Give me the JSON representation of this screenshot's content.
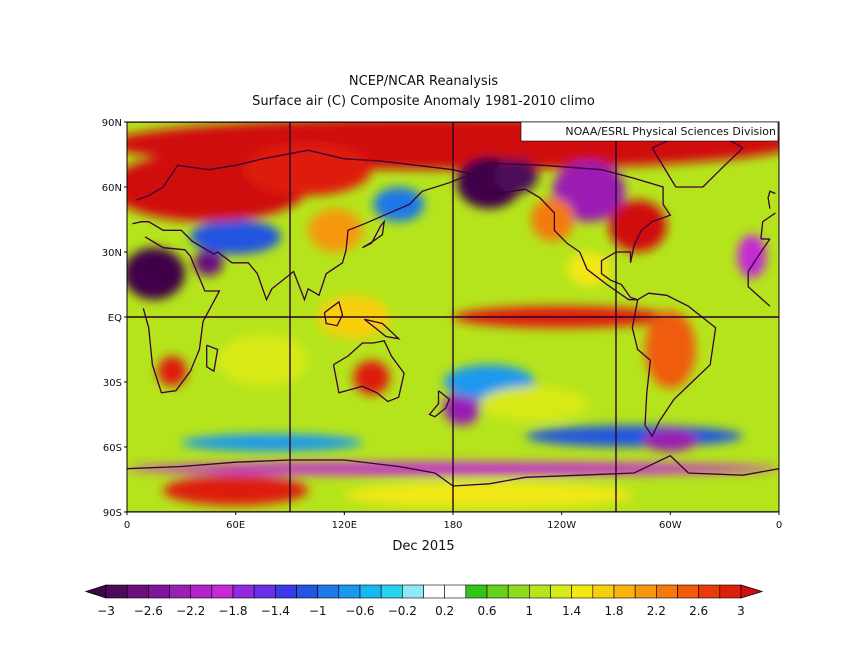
{
  "header": {
    "title_line1": "NCEP/NCAR Reanalysis",
    "title_line2": "Surface air (C) Composite Anomaly 1981-2010 climo",
    "attribution": "NOAA/ESRL Physical Sciences Division"
  },
  "map": {
    "period_label": "Dec 2015",
    "lat_ticks": [
      "90N",
      "60N",
      "30N",
      "EQ",
      "30S",
      "60S",
      "90S"
    ],
    "lon_ticks": [
      "0",
      "60E",
      "120E",
      "180",
      "120W",
      "60W",
      "0"
    ],
    "field": "surface air temperature anomaly",
    "units": "C",
    "projection": "equirectangular, 0-360 longitude",
    "grid_meridians_deg": [
      90,
      180,
      270
    ],
    "grid_parallels_deg": [
      0,
      90,
      -90
    ]
  },
  "colorbar": {
    "labels": [
      "-3",
      "-2.6",
      "-2.2",
      "-1.8",
      "-1.4",
      "-1",
      "-0.6",
      "-0.2",
      "0.2",
      "0.6",
      "1",
      "1.4",
      "1.8",
      "2.2",
      "2.6",
      "3"
    ],
    "colors": [
      "#4d0a5a",
      "#6b0f7d",
      "#80169a",
      "#9a1fb4",
      "#b024c8",
      "#c52ad6",
      "#8f2ae0",
      "#6a2fe8",
      "#3a3ae8",
      "#2255e0",
      "#1e78e6",
      "#1a98ee",
      "#18b8f2",
      "#29d3f0",
      "#8fe8f6",
      "#ffffff",
      "#ffffff",
      "#33c41a",
      "#66d21c",
      "#8fdc1c",
      "#b5e41c",
      "#d8ea18",
      "#f2e812",
      "#f8cf0f",
      "#f8b40e",
      "#f6980d",
      "#f37a0b",
      "#ef5b0a",
      "#e83c0a",
      "#de1f0a"
    ],
    "under_color": "#3f064a",
    "over_color": "#d01010"
  },
  "regions": [
    {
      "name": "arctic-band",
      "lon": 180,
      "lat": 80,
      "rlon": 190,
      "rlat": 12,
      "anomaly": 3.2
    },
    {
      "name": "north-africa-cold",
      "lon": 15,
      "lat": 20,
      "rlon": 17,
      "rlat": 12,
      "anomaly": -3.2
    },
    {
      "name": "arabia-cold",
      "lon": 45,
      "lat": 25,
      "rlon": 8,
      "rlat": 6,
      "anomaly": -2.6
    },
    {
      "name": "central-asia-cold",
      "lon": 60,
      "lat": 37,
      "rlon": 25,
      "rlat": 8,
      "anomaly": -1.2
    },
    {
      "name": "europe-russia-warm",
      "lon": 45,
      "lat": 60,
      "rlon": 55,
      "rlat": 16,
      "anomaly": 3.4
    },
    {
      "name": "siberia-warm",
      "lon": 100,
      "lat": 68,
      "rlon": 35,
      "rlat": 12,
      "anomaly": 3.0
    },
    {
      "name": "china-warm",
      "lon": 115,
      "lat": 40,
      "rlon": 15,
      "rlat": 10,
      "anomaly": 2.0
    },
    {
      "name": "japan-cold",
      "lon": 150,
      "lat": 52,
      "rlon": 14,
      "rlat": 8,
      "anomaly": -1.0
    },
    {
      "name": "alaska-cold",
      "lon": 200,
      "lat": 62,
      "rlon": 18,
      "rlat": 12,
      "anomaly": -3.3
    },
    {
      "name": "alaska-purple",
      "lon": 215,
      "lat": 65,
      "rlon": 12,
      "rlat": 8,
      "anomaly": -3.0
    },
    {
      "name": "canada-cold",
      "lon": 255,
      "lat": 58,
      "rlon": 20,
      "rlat": 14,
      "anomaly": -2.2
    },
    {
      "name": "eastern-us-warm",
      "lon": 282,
      "lat": 42,
      "rlon": 16,
      "rlat": 12,
      "anomaly": 3.3
    },
    {
      "name": "western-us-warm",
      "lon": 235,
      "lat": 45,
      "rlon": 12,
      "rlat": 10,
      "anomaly": 2.2
    },
    {
      "name": "mexico-warm",
      "lon": 255,
      "lat": 22,
      "rlon": 12,
      "rlat": 8,
      "anomaly": 1.4
    },
    {
      "name": "atlantic-cold",
      "lon": 345,
      "lat": 28,
      "rlon": 8,
      "rlat": 10,
      "anomaly": -2.0
    },
    {
      "name": "el-nino-warm",
      "lon": 240,
      "lat": 0,
      "rlon": 60,
      "rlat": 5,
      "anomaly": 2.8
    },
    {
      "name": "maritime-warm",
      "lon": 125,
      "lat": 0,
      "rlon": 20,
      "rlat": 10,
      "anomaly": 1.8
    },
    {
      "name": "south-america-warm",
      "lon": 300,
      "lat": -15,
      "rlon": 14,
      "rlat": 18,
      "anomaly": 2.4
    },
    {
      "name": "africa-south-warm",
      "lon": 25,
      "lat": -25,
      "rlon": 8,
      "rlat": 7,
      "anomaly": 2.9
    },
    {
      "name": "indian-ocean-mild",
      "lon": 75,
      "lat": -20,
      "rlon": 25,
      "rlat": 12,
      "anomaly": 1.2
    },
    {
      "name": "australia-warm",
      "lon": 135,
      "lat": -28,
      "rlon": 10,
      "rlat": 8,
      "anomaly": 2.8
    },
    {
      "name": "nz-cold",
      "lon": 185,
      "lat": -42,
      "rlon": 10,
      "rlat": 8,
      "anomaly": -2.2
    },
    {
      "name": "south-pacific-cold",
      "lon": 200,
      "lat": -30,
      "rlon": 25,
      "rlat": 8,
      "anomaly": -0.7
    },
    {
      "name": "south-pacific-warm",
      "lon": 225,
      "lat": -40,
      "rlon": 30,
      "rlat": 8,
      "anomaly": 1.2
    },
    {
      "name": "southern-ocean-cold",
      "lon": 280,
      "lat": -55,
      "rlon": 60,
      "rlat": 5,
      "anomaly": -1.2
    },
    {
      "name": "drake-cold",
      "lon": 300,
      "lat": -57,
      "rlon": 15,
      "rlat": 5,
      "anomaly": -2.2
    },
    {
      "name": "so-cold-indian",
      "lon": 80,
      "lat": -58,
      "rlon": 50,
      "rlat": 4,
      "anomaly": -0.8
    },
    {
      "name": "antarctic-cold-ring",
      "lon": 180,
      "lat": -70,
      "rlon": 180,
      "rlat": 3,
      "anomaly": -1.8
    },
    {
      "name": "antarctic-warm",
      "lon": 60,
      "lat": -80,
      "rlon": 40,
      "rlat": 7,
      "anomaly": 2.8
    },
    {
      "name": "antarctic-plateau",
      "lon": 200,
      "lat": -82,
      "rlon": 80,
      "rlat": 6,
      "anomaly": 1.4
    }
  ]
}
